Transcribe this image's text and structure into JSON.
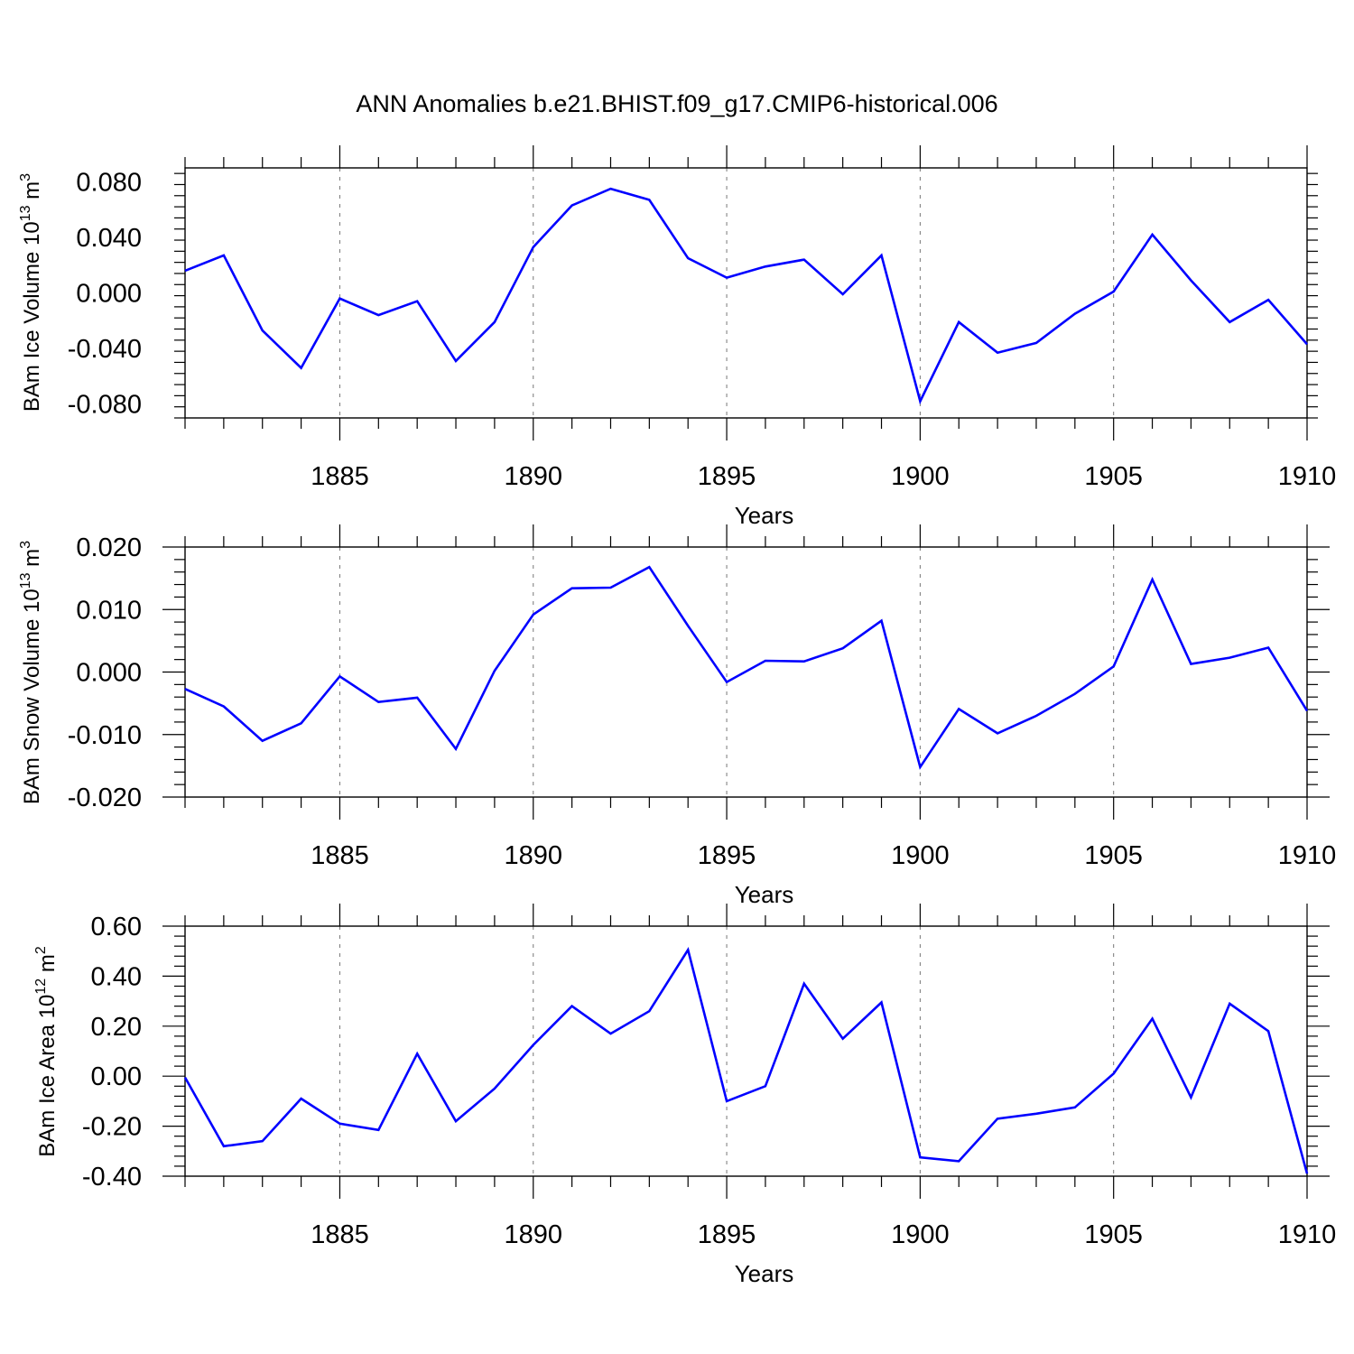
{
  "figure_title": "ANN Anomalies b.e21.BHIST.f09_g17.CMIP6-historical.006",
  "colors": {
    "series": "#0000ff",
    "axis": "#000000",
    "grid": "#777777"
  },
  "panels": [
    {
      "ylabel_main": "BAm Ice Volume 10",
      "ylabel_exp": "13",
      "ylabel_unit": " m",
      "ylabel_unit_exp": "3",
      "xlabel": "Years"
    },
    {
      "ylabel_main": "BAm Snow Volume 10",
      "ylabel_exp": "13",
      "ylabel_unit": " m",
      "ylabel_unit_exp": "3",
      "xlabel": "Years"
    },
    {
      "ylabel_main": "BAm Ice Area 10",
      "ylabel_exp": "12",
      "ylabel_unit": " m",
      "ylabel_unit_exp": "2",
      "xlabel": "Years"
    }
  ],
  "chart_data": [
    {
      "type": "line",
      "title": "ANN Anomalies b.e21.BHIST.f09_g17.CMIP6-historical.006",
      "xlabel": "Years",
      "ylabel": "BAm Ice Volume 10^13 m^3",
      "xlim": [
        1881,
        1910
      ],
      "ylim": [
        -0.09,
        0.09
      ],
      "x_ticks": [
        1885,
        1890,
        1895,
        1900,
        1905,
        1910
      ],
      "x_tick_labels": [
        "1885",
        "1890",
        "1895",
        "1900",
        "1905",
        "1910"
      ],
      "y_ticks": [
        -0.08,
        -0.04,
        0.0,
        0.04,
        0.08
      ],
      "y_tick_labels": [
        "-0.080",
        "-0.040",
        "0.000",
        "0.040",
        "0.080"
      ],
      "grid": "vertical dashed at major x ticks",
      "x": [
        1881,
        1882,
        1883,
        1884,
        1885,
        1886,
        1887,
        1888,
        1889,
        1890,
        1891,
        1892,
        1893,
        1894,
        1895,
        1896,
        1897,
        1898,
        1899,
        1900,
        1901,
        1902,
        1903,
        1904,
        1905,
        1906,
        1907,
        1908,
        1909,
        1910
      ],
      "values": [
        0.016,
        0.027,
        -0.027,
        -0.054,
        -0.004,
        -0.016,
        -0.006,
        -0.049,
        -0.021,
        0.033,
        0.063,
        0.075,
        0.067,
        0.025,
        0.011,
        0.019,
        0.024,
        -0.001,
        0.027,
        -0.078,
        -0.021,
        -0.043,
        -0.036,
        -0.015,
        0.001,
        0.042,
        0.009,
        -0.021,
        -0.005,
        -0.037
      ]
    },
    {
      "type": "line",
      "xlabel": "Years",
      "ylabel": "BAm Snow Volume 10^13 m^3",
      "xlim": [
        1881,
        1910
      ],
      "ylim": [
        -0.02,
        0.02
      ],
      "x_ticks": [
        1885,
        1890,
        1895,
        1900,
        1905,
        1910
      ],
      "x_tick_labels": [
        "1885",
        "1890",
        "1895",
        "1900",
        "1905",
        "1910"
      ],
      "y_ticks": [
        -0.02,
        -0.01,
        0.0,
        0.01,
        0.02
      ],
      "y_tick_labels": [
        "-0.020",
        "-0.010",
        "0.000",
        "0.010",
        "0.020"
      ],
      "grid": "vertical dashed at major x ticks",
      "x": [
        1881,
        1882,
        1883,
        1884,
        1885,
        1886,
        1887,
        1888,
        1889,
        1890,
        1891,
        1892,
        1893,
        1894,
        1895,
        1896,
        1897,
        1898,
        1899,
        1900,
        1901,
        1902,
        1903,
        1904,
        1905,
        1906,
        1907,
        1908,
        1909,
        1910
      ],
      "values": [
        -0.0027,
        -0.0055,
        -0.011,
        -0.0082,
        -0.0007,
        -0.0048,
        -0.0041,
        -0.0123,
        0.0002,
        0.0092,
        0.0134,
        0.0135,
        0.0168,
        0.0074,
        -0.0016,
        0.0018,
        0.0017,
        0.0038,
        0.0082,
        -0.0152,
        -0.0059,
        -0.0098,
        -0.007,
        -0.0035,
        0.0009,
        0.0148,
        0.0013,
        0.0023,
        0.0039,
        -0.0062
      ]
    },
    {
      "type": "line",
      "xlabel": "Years",
      "ylabel": "BAm Ice Area 10^12 m^2",
      "xlim": [
        1881,
        1910
      ],
      "ylim": [
        -0.4,
        0.6
      ],
      "x_ticks": [
        1885,
        1890,
        1895,
        1900,
        1905,
        1910
      ],
      "x_tick_labels": [
        "1885",
        "1890",
        "1895",
        "1900",
        "1905",
        "1910"
      ],
      "y_ticks": [
        -0.4,
        -0.2,
        0.0,
        0.2,
        0.4,
        0.6
      ],
      "y_tick_labels": [
        "-0.40",
        "-0.20",
        "0.00",
        "0.20",
        "0.40",
        "0.60"
      ],
      "grid": "vertical dashed at major x ticks",
      "x": [
        1881,
        1882,
        1883,
        1884,
        1885,
        1886,
        1887,
        1888,
        1889,
        1890,
        1891,
        1892,
        1893,
        1894,
        1895,
        1896,
        1897,
        1898,
        1899,
        1900,
        1901,
        1902,
        1903,
        1904,
        1905,
        1906,
        1907,
        1908,
        1909,
        1910
      ],
      "values": [
        -0.005,
        -0.28,
        -0.26,
        -0.09,
        -0.19,
        -0.215,
        0.09,
        -0.18,
        -0.05,
        0.125,
        0.28,
        0.17,
        0.26,
        0.505,
        -0.1,
        -0.04,
        0.37,
        0.15,
        0.295,
        -0.325,
        -0.34,
        -0.17,
        -0.15,
        -0.125,
        0.01,
        0.23,
        -0.085,
        0.29,
        0.18,
        -0.39
      ]
    }
  ]
}
